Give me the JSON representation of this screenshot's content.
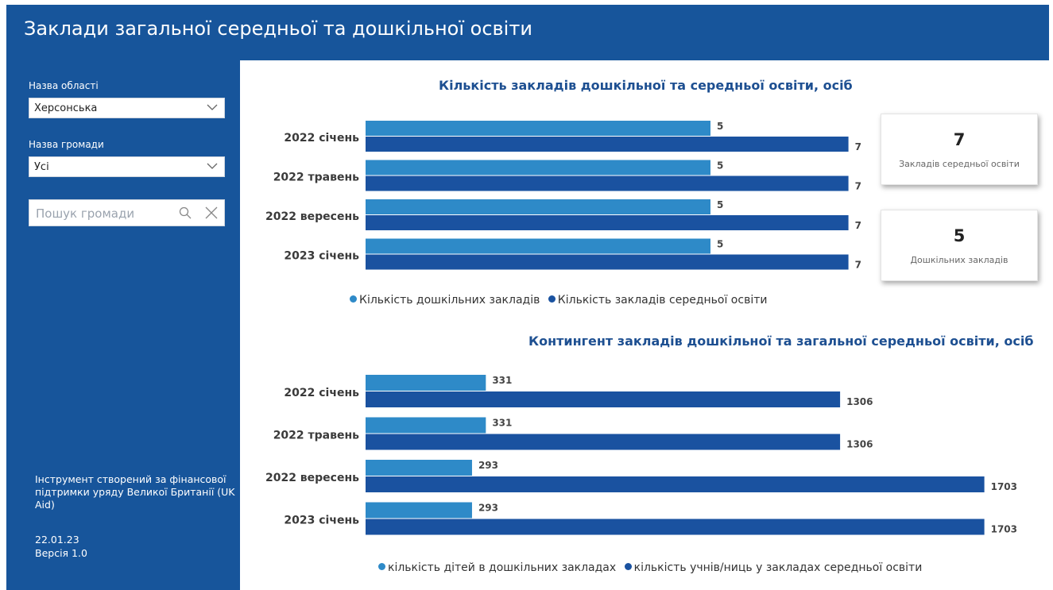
{
  "header": {
    "title": "Заклади загальної середньої та дошкільної освіти"
  },
  "filters": {
    "region_label": "Назва області",
    "region_value": "Херсонська",
    "community_label": "Назва громади",
    "community_value": "Усі",
    "search_placeholder": "Пошук громади"
  },
  "footer": {
    "line1": "Інструмент створений за фінансової",
    "line2": "підтримки уряду Великої Британії (UK",
    "line3": "Aid)",
    "date": "22.01.23",
    "version": "Версія 1.0"
  },
  "kpis": [
    {
      "value": "7",
      "caption": "Закладів середньої освіти"
    },
    {
      "value": "5",
      "caption": "Дошкільних закладів"
    }
  ],
  "colors": {
    "light": "#2e8ac8",
    "dark": "#1a52a0",
    "sidebar": "#17559b"
  },
  "chart_data": [
    {
      "type": "bar",
      "title": "Кількість закладів дошкільної та середньої освіти, осіб",
      "categories": [
        "2022 січень",
        "2022 травень",
        "2022 вересень",
        "2023 січень"
      ],
      "series": [
        {
          "name": "Кількість дошкільних закладів",
          "values": [
            5,
            5,
            5,
            5
          ]
        },
        {
          "name": "Кількість закладів середньої освіти",
          "values": [
            7,
            7,
            7,
            7
          ]
        }
      ]
    },
    {
      "type": "bar",
      "title": "Контингент закладів дошкільної та загальної середньої освіти, осіб",
      "categories": [
        "2022 січень",
        "2022 травень",
        "2022 вересень",
        "2023 січень"
      ],
      "series": [
        {
          "name": "кількість дітей в дошкільних закладах",
          "values": [
            331,
            331,
            293,
            293
          ]
        },
        {
          "name": "кількість учнів/ниць у закладах середньої освіти",
          "values": [
            1306,
            1306,
            1703,
            1703
          ]
        }
      ]
    }
  ]
}
